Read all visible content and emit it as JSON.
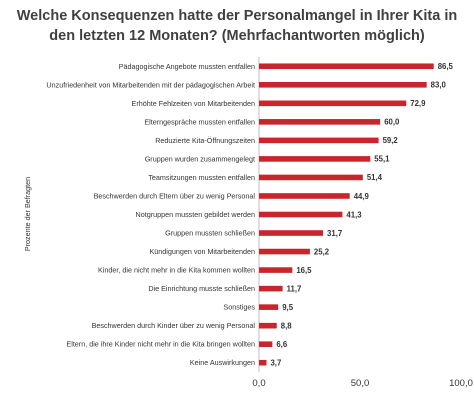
{
  "chart_data": {
    "type": "bar",
    "orientation": "horizontal",
    "title_line1": "Welche Konsequenzen hatte der Personalmangel in Ihrer Kita in",
    "title_line2": "den letzten 12 Monaten? (Mehrfachantworten möglich)",
    "ylabel": "Prozente der Befragten",
    "xlabel": "",
    "xlim": [
      0,
      100
    ],
    "xticks": [
      "0,0",
      "50,0",
      "100,0"
    ],
    "grid": false,
    "bar_color": "#c8262c",
    "categories": [
      "Pädagogische Angebote mussten entfallen",
      "Unzufriedenheit von Mitarbeitenden mit der pädagogischen Arbeit",
      "Erhöhte Fehlzeiten von Mitarbeitenden",
      "Elterngespräche mussten entfallen",
      "Reduzierte Kita-Öffnungszeiten",
      "Gruppen wurden zusammengelegt",
      "Teamsitzungen mussten entfallen",
      "Beschwerden durch Eltern über zu wenig Personal",
      "Notgruppen mussten gebildet werden",
      "Gruppen mussten schließen",
      "Kündigungen von Mitarbeitenden",
      "Kinder, die nicht mehr in die Kita kommen wollten",
      "Die Einrichtung musste schließen",
      "Sonstiges",
      "Beschwerden durch Kinder über zu wenig Personal",
      "Eltern, die ihre Kinder nicht mehr in die Kita bringen wollten",
      "Keine Auswirkungen"
    ],
    "values": [
      86.5,
      83.0,
      72.9,
      60.0,
      59.2,
      55.1,
      51.4,
      44.9,
      41.3,
      31.7,
      25.2,
      16.5,
      11.7,
      9.5,
      8.8,
      6.6,
      3.7
    ],
    "value_labels": [
      "86,5",
      "83,0",
      "72,9",
      "60,0",
      "59,2",
      "55,1",
      "51,4",
      "44,9",
      "41,3",
      "31,7",
      "25,2",
      "16,5",
      "11,7",
      "9,5",
      "8,8",
      "6,6",
      "3,7"
    ]
  }
}
